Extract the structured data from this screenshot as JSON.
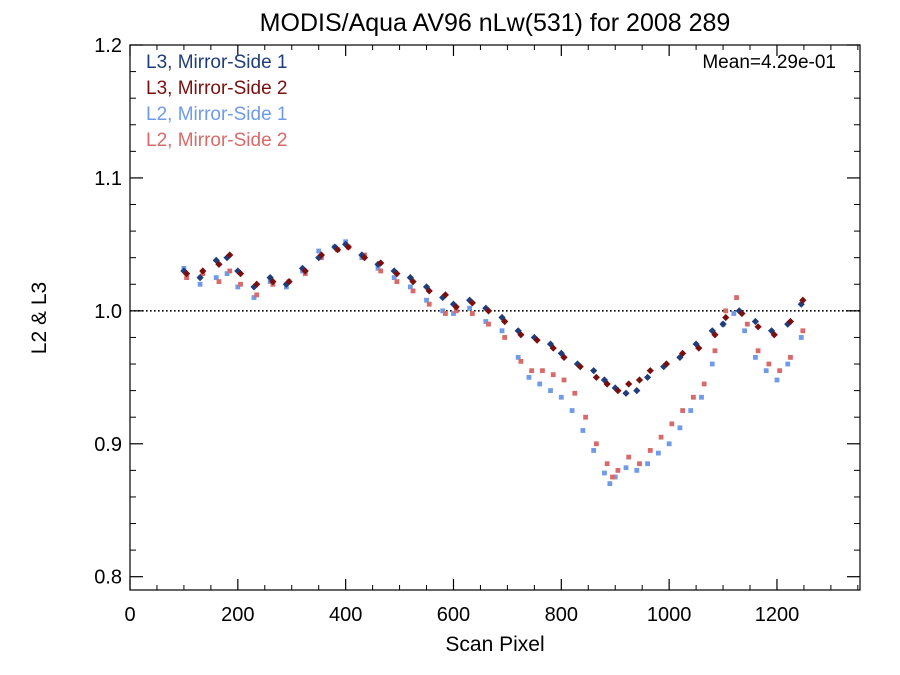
{
  "chart_data": {
    "type": "scatter",
    "title": "MODIS/Aqua AV96 nLw(531) for 2008 289",
    "xlabel": "Scan Pixel",
    "ylabel": "L2 & L3",
    "xlim": [
      0,
      1354
    ],
    "ylim": [
      0.79,
      1.2
    ],
    "x_ticks": [
      0,
      200,
      400,
      600,
      800,
      1000,
      1200
    ],
    "x_tick_labels": [
      "0",
      "200",
      "400",
      "600",
      "800",
      "1000",
      "1200"
    ],
    "x_minor_step": 50,
    "y_ticks": [
      0.8,
      0.9,
      1.0,
      1.1,
      1.2
    ],
    "y_tick_labels": [
      "0.8",
      "0.9",
      "1.0",
      "1.1",
      "1.2"
    ],
    "y_minor_step": 0.02,
    "reference_line": 1.0,
    "legend_position": "top-left",
    "annotation": {
      "text": "Mean=4.29e-01",
      "color": "#d95f5f",
      "position": "top-right"
    },
    "series": [
      {
        "name": "L3, Mirror-Side 1",
        "color": "#1f3d7a",
        "marker": "diamond",
        "x": [
          100,
          130,
          160,
          180,
          200,
          230,
          260,
          290,
          320,
          350,
          380,
          400,
          430,
          460,
          490,
          520,
          550,
          580,
          600,
          630,
          660,
          690,
          720,
          750,
          780,
          800,
          830,
          860,
          880,
          900,
          920,
          940,
          960,
          990,
          1020,
          1050,
          1080,
          1100,
          1130,
          1160,
          1190,
          1220,
          1245
        ],
        "y": [
          1.03,
          1.025,
          1.038,
          1.04,
          1.03,
          1.018,
          1.025,
          1.02,
          1.032,
          1.04,
          1.048,
          1.05,
          1.042,
          1.035,
          1.03,
          1.025,
          1.018,
          1.01,
          1.005,
          1.008,
          1.002,
          0.995,
          0.985,
          0.98,
          0.975,
          0.968,
          0.96,
          0.955,
          0.948,
          0.942,
          0.938,
          0.94,
          0.95,
          0.958,
          0.965,
          0.975,
          0.985,
          0.99,
          1.0,
          0.992,
          0.985,
          0.99,
          1.005
        ]
      },
      {
        "name": "L3, Mirror-Side 2",
        "color": "#7a0f0f",
        "marker": "diamond",
        "x": [
          105,
          135,
          165,
          185,
          205,
          235,
          265,
          295,
          325,
          355,
          385,
          405,
          435,
          465,
          495,
          525,
          555,
          585,
          605,
          635,
          665,
          695,
          725,
          755,
          785,
          805,
          835,
          865,
          885,
          905,
          925,
          945,
          965,
          995,
          1025,
          1055,
          1085,
          1105,
          1135,
          1165,
          1195,
          1225,
          1248
        ],
        "y": [
          1.028,
          1.03,
          1.035,
          1.042,
          1.028,
          1.02,
          1.022,
          1.022,
          1.03,
          1.042,
          1.046,
          1.048,
          1.04,
          1.036,
          1.028,
          1.022,
          1.015,
          1.012,
          1.003,
          1.006,
          1.0,
          0.992,
          0.982,
          0.978,
          0.972,
          0.965,
          0.958,
          0.95,
          0.945,
          0.94,
          0.945,
          0.948,
          0.955,
          0.96,
          0.968,
          0.972,
          0.982,
          0.995,
          0.998,
          0.988,
          0.982,
          0.992,
          1.008
        ]
      },
      {
        "name": "L2, Mirror-Side 1",
        "color": "#6f9be8",
        "marker": "square",
        "x": [
          100,
          130,
          160,
          180,
          200,
          230,
          260,
          290,
          320,
          350,
          380,
          400,
          430,
          460,
          490,
          520,
          550,
          580,
          600,
          630,
          660,
          690,
          720,
          740,
          760,
          780,
          800,
          820,
          840,
          860,
          880,
          890,
          900,
          920,
          940,
          960,
          980,
          1000,
          1020,
          1040,
          1060,
          1080,
          1100,
          1120,
          1140,
          1160,
          1180,
          1200,
          1220,
          1245
        ],
        "y": [
          1.032,
          1.02,
          1.025,
          1.028,
          1.018,
          1.01,
          1.022,
          1.018,
          1.03,
          1.045,
          1.048,
          1.052,
          1.04,
          1.032,
          1.025,
          1.018,
          1.008,
          1.0,
          0.998,
          1.002,
          0.992,
          0.985,
          0.965,
          0.95,
          0.945,
          0.94,
          0.935,
          0.925,
          0.91,
          0.895,
          0.878,
          0.87,
          0.875,
          0.882,
          0.88,
          0.885,
          0.893,
          0.9,
          0.912,
          0.925,
          0.935,
          0.96,
          0.99,
          0.998,
          0.985,
          0.965,
          0.955,
          0.948,
          0.96,
          0.98
        ]
      },
      {
        "name": "L2, Mirror-Side 2",
        "color": "#d96a6a",
        "marker": "square",
        "x": [
          105,
          135,
          165,
          185,
          205,
          235,
          265,
          295,
          325,
          355,
          385,
          405,
          435,
          465,
          495,
          525,
          555,
          585,
          605,
          635,
          665,
          695,
          725,
          745,
          765,
          785,
          805,
          825,
          845,
          865,
          885,
          895,
          905,
          925,
          945,
          965,
          985,
          1005,
          1025,
          1045,
          1065,
          1085,
          1105,
          1125,
          1145,
          1165,
          1185,
          1205,
          1225,
          1248
        ],
        "y": [
          1.025,
          1.028,
          1.022,
          1.03,
          1.02,
          1.012,
          1.02,
          1.022,
          1.028,
          1.04,
          1.046,
          1.048,
          1.042,
          1.03,
          1.022,
          1.015,
          1.005,
          0.998,
          1.0,
          0.998,
          0.99,
          0.98,
          0.962,
          0.955,
          0.955,
          0.952,
          0.948,
          0.938,
          0.92,
          0.9,
          0.885,
          0.875,
          0.88,
          0.89,
          0.885,
          0.895,
          0.905,
          0.915,
          0.925,
          0.935,
          0.945,
          0.97,
          1.0,
          1.01,
          0.99,
          0.97,
          0.96,
          0.955,
          0.965,
          0.985
        ]
      }
    ]
  }
}
